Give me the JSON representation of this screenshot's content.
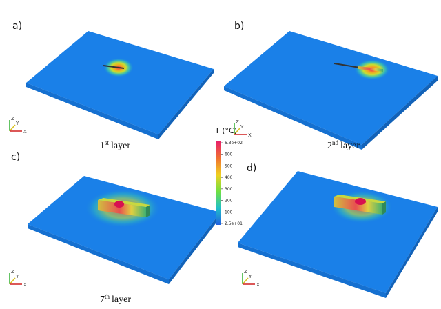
{
  "panels": [
    {
      "label": "a)",
      "caption": {
        "ordinal": "1",
        "suffix": "st",
        "word": "layer"
      }
    },
    {
      "label": "b)",
      "caption": {
        "ordinal": "2",
        "suffix": "nd",
        "word": "layer"
      }
    },
    {
      "label": "c)",
      "caption": {
        "ordinal": "7",
        "suffix": "th",
        "word": "layer"
      }
    },
    {
      "label": "d)"
    }
  ],
  "axes_triad": [
    "Z",
    "Y",
    "X"
  ],
  "colorbar": {
    "title": "T (°C)",
    "ticks": [
      "6.3e+02",
      "600",
      "500",
      "400",
      "300",
      "200",
      "100",
      "2.5e+01"
    ]
  }
}
